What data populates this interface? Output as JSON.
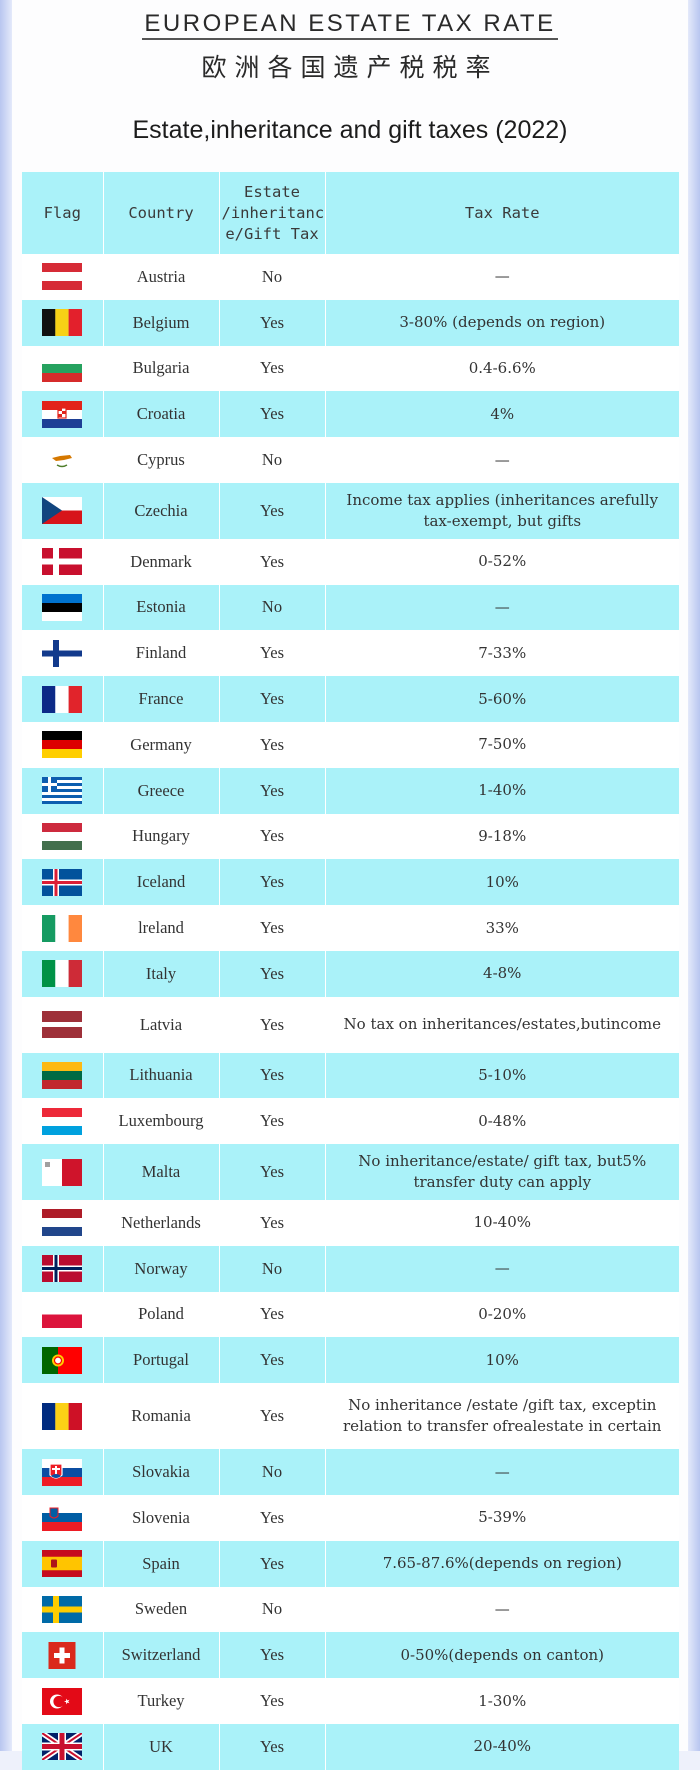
{
  "title_en": "EUROPEAN ESTATE TAX RATE",
  "title_cn": "欧洲各国遗产税税率",
  "subtitle": "Estate,inheritance and gift taxes (2022)",
  "table": {
    "headers": [
      "Flag",
      "Country",
      "Estate /inheritanc e/Gift Tax",
      "Tax Rate"
    ],
    "rows": [
      {
        "flag": "austria-flag-icon",
        "country": "Austria",
        "tax": "No",
        "rate": "—"
      },
      {
        "flag": "belgium-flag-icon",
        "country": "Belgium",
        "tax": "Yes",
        "rate": "3-80% (depends on region)"
      },
      {
        "flag": "bulgaria-flag-icon",
        "country": "Bulgaria",
        "tax": "Yes",
        "rate": "0.4-6.6%"
      },
      {
        "flag": "croatia-flag-icon",
        "country": "Croatia",
        "tax": "Yes",
        "rate": "4%"
      },
      {
        "flag": "cyprus-flag-icon",
        "country": "Cyprus",
        "tax": "No",
        "rate": "—"
      },
      {
        "flag": "czechia-flag-icon",
        "country": "Czechia",
        "tax": "Yes",
        "rate": "Income tax applies (inheritances arefully tax-exempt, but gifts"
      },
      {
        "flag": "denmark-flag-icon",
        "country": "Denmark",
        "tax": "Yes",
        "rate": "0-52%"
      },
      {
        "flag": "estonia-flag-icon",
        "country": "Estonia",
        "tax": "No",
        "rate": "—"
      },
      {
        "flag": "finland-flag-icon",
        "country": "Finland",
        "tax": "Yes",
        "rate": "7-33%"
      },
      {
        "flag": "france-flag-icon",
        "country": "France",
        "tax": "Yes",
        "rate": "5-60%"
      },
      {
        "flag": "germany-flag-icon",
        "country": "Germany",
        "tax": "Yes",
        "rate": "7-50%"
      },
      {
        "flag": "greece-flag-icon",
        "country": "Greece",
        "tax": "Yes",
        "rate": "1-40%"
      },
      {
        "flag": "hungary-flag-icon",
        "country": "Hungary",
        "tax": "Yes",
        "rate": "9-18%"
      },
      {
        "flag": "iceland-flag-icon",
        "country": "Iceland",
        "tax": "Yes",
        "rate": "10%"
      },
      {
        "flag": "ireland-flag-icon",
        "country": "lreland",
        "tax": "Yes",
        "rate": "33%"
      },
      {
        "flag": "italy-flag-icon",
        "country": "Italy",
        "tax": "Yes",
        "rate": "4-8%"
      },
      {
        "flag": "latvia-flag-icon",
        "country": "Latvia",
        "tax": "Yes",
        "rate": "No tax on inheritances/estates,butincome"
      },
      {
        "flag": "lithuania-flag-icon",
        "country": "Lithuania",
        "tax": "Yes",
        "rate": "5-10%"
      },
      {
        "flag": "luxembourg-flag-icon",
        "country": "Luxembourg",
        "tax": "Yes",
        "rate": "0-48%"
      },
      {
        "flag": "malta-flag-icon",
        "country": "Malta",
        "tax": "Yes",
        "rate": "No inheritance/estate/ gift tax, but5% transfer duty can apply"
      },
      {
        "flag": "netherlands-flag-icon",
        "country": "Netherlands",
        "tax": "Yes",
        "rate": "10-40%"
      },
      {
        "flag": "norway-flag-icon",
        "country": "Norway",
        "tax": "No",
        "rate": "—"
      },
      {
        "flag": "poland-flag-icon",
        "country": "Poland",
        "tax": "Yes",
        "rate": "0-20%"
      },
      {
        "flag": "portugal-flag-icon",
        "country": "Portugal",
        "tax": "Yes",
        "rate": "10%"
      },
      {
        "flag": "romania-flag-icon",
        "country": "Romania",
        "tax": "Yes",
        "rate": "No inheritance /estate /gift tax, exceptin relation to transfer ofrealestate in certain"
      },
      {
        "flag": "slovakia-flag-icon",
        "country": "Slovakia",
        "tax": "No",
        "rate": "—"
      },
      {
        "flag": "slovenia-flag-icon",
        "country": "Slovenia",
        "tax": "Yes",
        "rate": "5-39%"
      },
      {
        "flag": "spain-flag-icon",
        "country": "Spain",
        "tax": "Yes",
        "rate": "7.65-87.6%(depends on region)"
      },
      {
        "flag": "sweden-flag-icon",
        "country": "Sweden",
        "tax": "No",
        "rate": "—"
      },
      {
        "flag": "switzerland-flag-icon",
        "country": "Switzerland",
        "tax": "Yes",
        "rate": "0-50%(depends on canton)"
      },
      {
        "flag": "turkey-flag-icon",
        "country": "Turkey",
        "tax": "Yes",
        "rate": "1-30%"
      },
      {
        "flag": "uk-flag-icon",
        "country": "UK",
        "tax": "Yes",
        "rate": "20-40%"
      }
    ]
  },
  "colors": {
    "row_highlight": "#aaf2f9",
    "row_plain": "#ffffff",
    "text": "#333333"
  }
}
